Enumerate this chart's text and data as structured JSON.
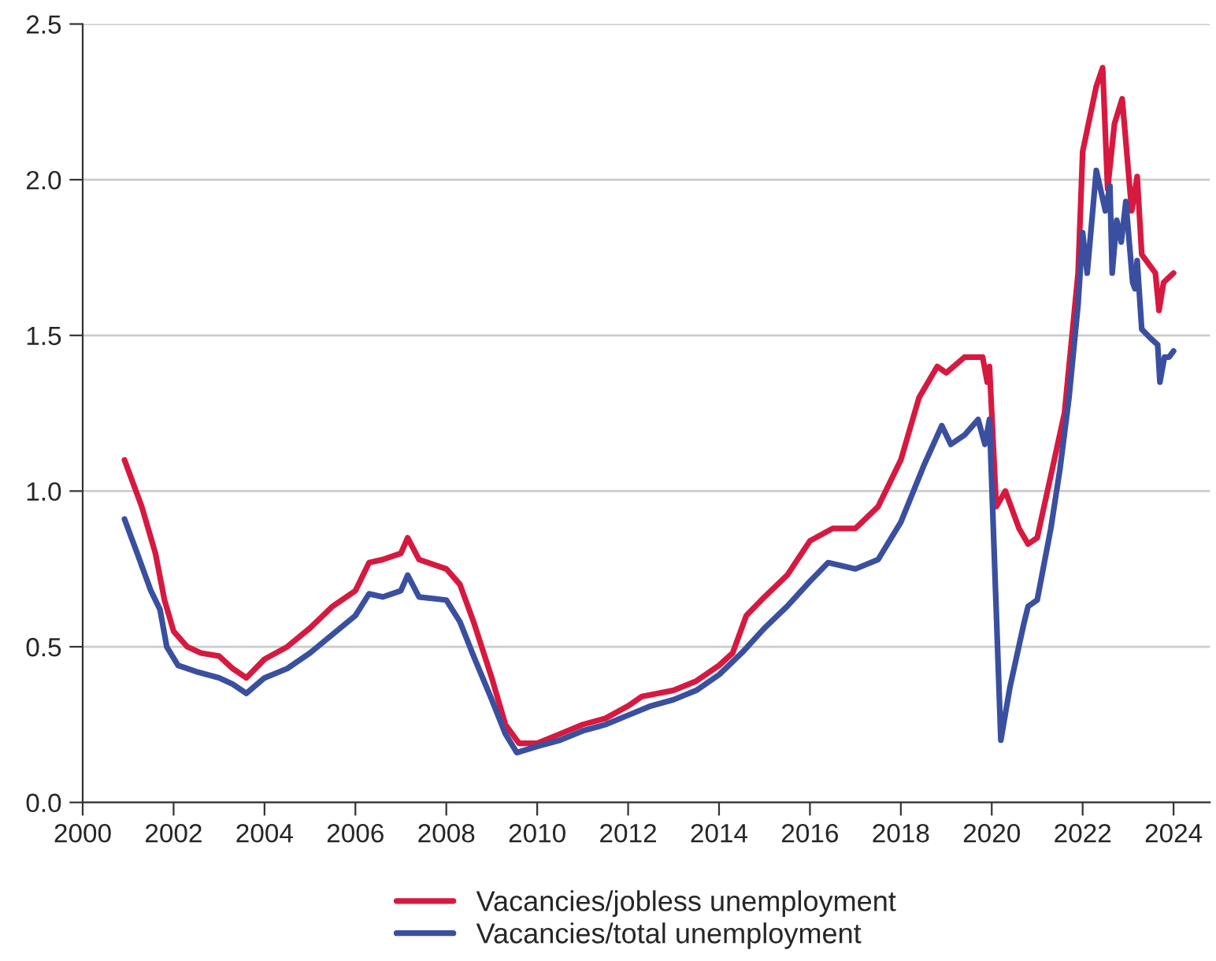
{
  "chart_data": {
    "type": "line",
    "xlim": [
      2000,
      2024.8
    ],
    "xticks": [
      2000,
      2002,
      2004,
      2006,
      2008,
      2010,
      2012,
      2014,
      2016,
      2018,
      2020,
      2022,
      2024
    ],
    "ylim": [
      0,
      2.5
    ],
    "yticks": [
      {
        "value": 0,
        "label": "0.0"
      },
      {
        "value": 0.5,
        "label": "0.5"
      },
      {
        "value": 1.0,
        "label": "1.0"
      },
      {
        "value": 1.5,
        "label": "1.5"
      },
      {
        "value": 2.0,
        "label": "2.0"
      },
      {
        "value": 2.5,
        "label": "2.5"
      }
    ],
    "grid": "y",
    "legend": "bottom",
    "marker": "none",
    "line_style": "solid",
    "series": [
      {
        "name": "Vacancies/jobless unemployment",
        "color": "#d7193f",
        "x": [
          2000.92,
          2001.3,
          2001.6,
          2001.8,
          2002.0,
          2002.3,
          2002.6,
          2003.0,
          2003.3,
          2003.6,
          2004.0,
          2004.5,
          2005.0,
          2005.5,
          2006.0,
          2006.3,
          2006.6,
          2007.0,
          2007.15,
          2007.4,
          2008.0,
          2008.3,
          2008.6,
          2009.0,
          2009.3,
          2009.6,
          2010.0,
          2010.5,
          2011.0,
          2011.5,
          2012.0,
          2012.3,
          2013.0,
          2013.5,
          2014.0,
          2014.3,
          2014.6,
          2015.0,
          2015.5,
          2016.0,
          2016.5,
          2017.0,
          2017.5,
          2018.0,
          2018.4,
          2018.8,
          2019.0,
          2019.4,
          2019.8,
          2019.9,
          2019.95,
          2020.1,
          2020.3,
          2020.6,
          2020.8,
          2021.0,
          2021.3,
          2021.6,
          2021.9,
          2022.0,
          2022.3,
          2022.44,
          2022.55,
          2022.7,
          2022.87,
          2023.08,
          2023.2,
          2023.3,
          2023.6,
          2023.68,
          2023.78,
          2024.0
        ],
        "values": [
          1.1,
          0.95,
          0.8,
          0.65,
          0.55,
          0.5,
          0.48,
          0.47,
          0.43,
          0.4,
          0.46,
          0.5,
          0.56,
          0.63,
          0.68,
          0.77,
          0.78,
          0.8,
          0.85,
          0.78,
          0.75,
          0.7,
          0.58,
          0.4,
          0.25,
          0.19,
          0.19,
          0.22,
          0.25,
          0.27,
          0.31,
          0.34,
          0.36,
          0.39,
          0.44,
          0.48,
          0.6,
          0.66,
          0.73,
          0.84,
          0.88,
          0.88,
          0.95,
          1.1,
          1.3,
          1.4,
          1.38,
          1.43,
          1.43,
          1.35,
          1.4,
          0.95,
          1.0,
          0.88,
          0.83,
          0.85,
          1.05,
          1.25,
          1.7,
          2.09,
          2.3,
          2.36,
          1.97,
          2.18,
          2.26,
          1.9,
          2.01,
          1.76,
          1.7,
          1.58,
          1.67,
          1.7
        ]
      },
      {
        "name": "Vacancies/total unemployment",
        "color": "#3a4fa0",
        "x": [
          2000.92,
          2001.2,
          2001.5,
          2001.7,
          2001.85,
          2002.1,
          2002.5,
          2003.0,
          2003.3,
          2003.6,
          2004.0,
          2004.5,
          2005.0,
          2005.5,
          2006.0,
          2006.3,
          2006.6,
          2007.0,
          2007.15,
          2007.4,
          2008.0,
          2008.3,
          2008.6,
          2009.0,
          2009.3,
          2009.55,
          2010.0,
          2010.5,
          2011.0,
          2011.5,
          2012.0,
          2012.5,
          2013.0,
          2013.5,
          2014.0,
          2014.5,
          2015.0,
          2015.5,
          2016.0,
          2016.4,
          2017.0,
          2017.5,
          2018.0,
          2018.5,
          2018.9,
          2019.1,
          2019.4,
          2019.7,
          2019.85,
          2019.95,
          2020.2,
          2020.4,
          2020.7,
          2020.8,
          2021.0,
          2021.3,
          2021.5,
          2021.7,
          2021.9,
          2022.0,
          2022.1,
          2022.3,
          2022.5,
          2022.6,
          2022.65,
          2022.75,
          2022.85,
          2022.95,
          2023.1,
          2023.15,
          2023.2,
          2023.3,
          2023.5,
          2023.65,
          2023.7,
          2023.8,
          2023.9,
          2024.0
        ],
        "values": [
          0.91,
          0.8,
          0.68,
          0.62,
          0.5,
          0.44,
          0.42,
          0.4,
          0.38,
          0.35,
          0.4,
          0.43,
          0.48,
          0.54,
          0.6,
          0.67,
          0.66,
          0.68,
          0.73,
          0.66,
          0.65,
          0.58,
          0.47,
          0.33,
          0.22,
          0.16,
          0.18,
          0.2,
          0.23,
          0.25,
          0.28,
          0.31,
          0.33,
          0.36,
          0.41,
          0.48,
          0.56,
          0.63,
          0.71,
          0.77,
          0.75,
          0.78,
          0.9,
          1.08,
          1.21,
          1.15,
          1.18,
          1.23,
          1.15,
          1.23,
          0.2,
          0.37,
          0.57,
          0.63,
          0.65,
          0.88,
          1.07,
          1.3,
          1.6,
          1.83,
          1.7,
          2.03,
          1.9,
          1.98,
          1.7,
          1.87,
          1.8,
          1.93,
          1.67,
          1.65,
          1.74,
          1.52,
          1.49,
          1.47,
          1.35,
          1.43,
          1.43,
          1.45
        ]
      }
    ]
  }
}
